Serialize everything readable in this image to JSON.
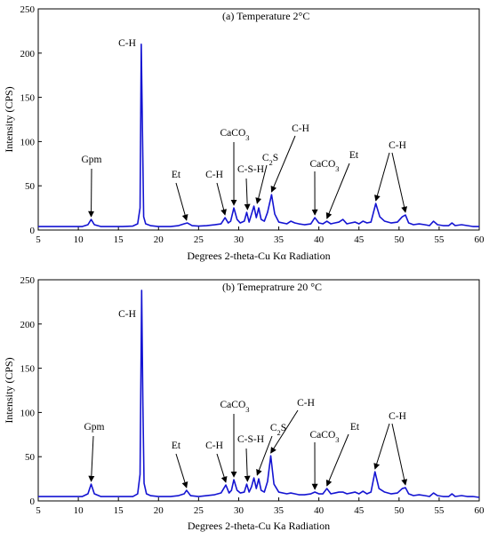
{
  "chart_data": [
    {
      "type": "line",
      "title": "(a) Temperature 2°C",
      "xlabel": "Degrees 2-theta-Cu Kα Radiation",
      "ylabel": "Intensity (CPS)",
      "xlim": [
        5,
        60
      ],
      "ylim": [
        0,
        250
      ],
      "xticks": [
        5,
        10,
        15,
        20,
        25,
        30,
        35,
        40,
        45,
        50,
        55,
        60
      ],
      "yticks": [
        0,
        50,
        100,
        150,
        200,
        250
      ],
      "grid": false,
      "line_color": "#1414d2",
      "series": [
        {
          "x": [
            5,
            7,
            9,
            10.5,
            11.2,
            11.6,
            12.0,
            12.8,
            14,
            15.5,
            16.8,
            17.4,
            17.7,
            17.85,
            18.0,
            18.15,
            18.4,
            19.0,
            20,
            21.5,
            22.5,
            23.2,
            23.6,
            24.2,
            25,
            26,
            27,
            27.8,
            28.3,
            28.7,
            29.0,
            29.4,
            29.8,
            30.2,
            30.7,
            31.0,
            31.3,
            31.6,
            31.9,
            32.2,
            32.5,
            32.8,
            33.2,
            33.6,
            34.1,
            34.5,
            35.0,
            36.0,
            36.5,
            37.0,
            37.5,
            38.2,
            39.0,
            39.5,
            40.0,
            40.5,
            41.0,
            41.5,
            42.0,
            42.5,
            43.0,
            43.5,
            44.0,
            44.5,
            45.0,
            45.5,
            46.0,
            46.5,
            47.1,
            47.6,
            48.2,
            49,
            49.8,
            50.4,
            50.8,
            51.2,
            51.8,
            52.5,
            53.2,
            53.8,
            54.3,
            54.8,
            55.5,
            56.2,
            56.6,
            57.0,
            57.8,
            58.5,
            59.2,
            60
          ],
          "y": [
            4,
            4,
            4,
            4,
            6,
            12,
            6,
            4,
            4,
            4,
            4.5,
            7,
            25,
            210,
            110,
            15,
            7,
            5,
            4,
            4,
            5,
            7,
            8,
            5,
            4.5,
            5,
            6,
            7,
            14,
            8,
            10,
            25,
            12,
            8,
            10,
            20,
            9,
            18,
            27,
            14,
            25,
            12,
            10,
            20,
            40,
            18,
            9,
            7,
            10,
            8,
            7,
            6,
            7,
            14,
            8,
            7,
            10,
            7,
            8,
            9,
            12,
            7,
            8,
            9,
            7,
            10,
            8,
            9,
            30,
            15,
            10,
            8,
            9,
            15,
            17,
            8,
            6,
            7,
            6,
            5,
            10,
            6,
            5,
            5,
            8,
            5,
            6,
            5,
            4,
            4
          ]
        }
      ],
      "annotations": [
        {
          "text": "C-H",
          "x": 17.85,
          "y": 210
        },
        {
          "text": "Gpm",
          "x": 11.6,
          "y": 12
        },
        {
          "text": "Et",
          "x": 23.5,
          "y": 8
        },
        {
          "text": "C-H",
          "x": 28.3,
          "y": 14
        },
        {
          "text": "CaCO3",
          "x": 29.4,
          "y": 25
        },
        {
          "text": "C-S-H",
          "x": 31.1,
          "y": 20
        },
        {
          "text": "C2S",
          "x": 32.3,
          "y": 27
        },
        {
          "text": "C-H",
          "x": 34.1,
          "y": 40
        },
        {
          "text": "CaCO3",
          "x": 39.5,
          "y": 14
        },
        {
          "text": "Et",
          "x": 41.0,
          "y": 10
        },
        {
          "text": "C-H",
          "x": 47.1,
          "y": 30
        },
        {
          "text": "C-H",
          "x": 50.8,
          "y": 17
        }
      ]
    },
    {
      "type": "line",
      "title": "(b) Temepratrure 20 °C",
      "xlabel": "Degrees 2-theta-Cu Ka Radiation",
      "ylabel": "Intensity (CPS)",
      "xlim": [
        5,
        60
      ],
      "ylim": [
        0,
        250
      ],
      "xticks": [
        5,
        10,
        15,
        20,
        25,
        30,
        35,
        40,
        45,
        50,
        55,
        60
      ],
      "yticks": [
        0,
        50,
        100,
        150,
        200,
        250
      ],
      "grid": false,
      "line_color": "#1414d2",
      "series": [
        {
          "x": [
            5,
            7,
            9,
            10.5,
            11.2,
            11.6,
            12.0,
            12.8,
            14,
            15.5,
            16.8,
            17.4,
            17.7,
            17.9,
            18.05,
            18.2,
            18.5,
            19.0,
            20,
            21.5,
            22.5,
            23.2,
            23.5,
            24.0,
            25,
            26,
            27,
            27.8,
            28.4,
            28.8,
            29.1,
            29.4,
            29.8,
            30.2,
            30.7,
            31.0,
            31.3,
            31.6,
            31.9,
            32.2,
            32.5,
            32.8,
            33.2,
            33.6,
            34.0,
            34.4,
            35.0,
            36.0,
            36.5,
            37.0,
            37.5,
            38.2,
            39.0,
            39.5,
            40.0,
            40.5,
            41.0,
            41.5,
            42.0,
            42.5,
            43.0,
            43.5,
            44.0,
            44.5,
            45.0,
            45.5,
            46.0,
            46.5,
            47.0,
            47.5,
            48.2,
            49,
            49.8,
            50.4,
            50.8,
            51.2,
            51.8,
            52.5,
            53.2,
            53.8,
            54.3,
            54.8,
            55.5,
            56.2,
            56.6,
            57.0,
            57.8,
            58.5,
            59.2,
            60
          ],
          "y": [
            5,
            5,
            5,
            5,
            8,
            19,
            8,
            5,
            5,
            5,
            5,
            8,
            30,
            238,
            110,
            20,
            8,
            6,
            5,
            5,
            6,
            8,
            12,
            6,
            5,
            6,
            7,
            9,
            18,
            9,
            12,
            24,
            12,
            9,
            10,
            19,
            10,
            16,
            26,
            14,
            25,
            12,
            10,
            22,
            51,
            19,
            10,
            8,
            9,
            8,
            7,
            7,
            8,
            10,
            8,
            8,
            14,
            8,
            9,
            10,
            10,
            8,
            9,
            10,
            8,
            11,
            8,
            10,
            33,
            14,
            10,
            8,
            9,
            14,
            15,
            8,
            6,
            7,
            6,
            5,
            9,
            6,
            5,
            5,
            8,
            5,
            6,
            5,
            5,
            4
          ]
        }
      ],
      "annotations": [
        {
          "text": "C-H",
          "x": 17.9,
          "y": 238
        },
        {
          "text": "Gpm",
          "x": 11.6,
          "y": 19
        },
        {
          "text": "Et",
          "x": 23.5,
          "y": 12
        },
        {
          "text": "C-H",
          "x": 28.4,
          "y": 18
        },
        {
          "text": "CaCO3",
          "x": 29.4,
          "y": 24
        },
        {
          "text": "C-S-H",
          "x": 31.1,
          "y": 19
        },
        {
          "text": "C2S",
          "x": 32.3,
          "y": 26
        },
        {
          "text": "C-H",
          "x": 34.0,
          "y": 51
        },
        {
          "text": "CaCO3",
          "x": 39.5,
          "y": 10
        },
        {
          "text": "Et",
          "x": 41.0,
          "y": 14
        },
        {
          "text": "C-H",
          "x": 47.0,
          "y": 33
        },
        {
          "text": "C-H",
          "x": 50.8,
          "y": 15
        }
      ]
    }
  ]
}
